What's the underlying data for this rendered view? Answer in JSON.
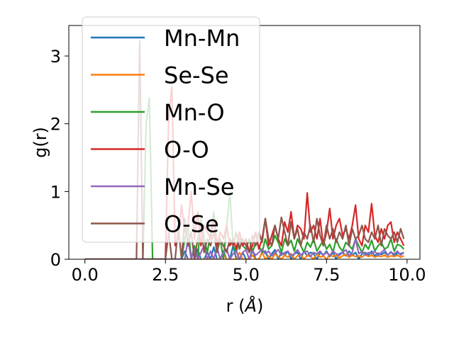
{
  "chart_data": {
    "type": "line",
    "title": "",
    "xlabel": "r (",
    "xlabel_unit": "Å",
    "xlabel_close": ")",
    "ylabel": "g(r)",
    "xlim": [
      -0.5,
      10.4
    ],
    "ylim": [
      0,
      3.45
    ],
    "xticks": [
      0.0,
      2.5,
      5.0,
      7.5,
      10.0
    ],
    "xtick_labels": [
      "0.0",
      "2.5",
      "5.0",
      "7.5",
      "10.0"
    ],
    "yticks": [
      0,
      1,
      2,
      3
    ],
    "ytick_labels": [
      "0",
      "1",
      "2",
      "3"
    ],
    "grid": false,
    "legend_position": "upper-left",
    "x": [
      0.0,
      0.1,
      0.2,
      0.3,
      0.4,
      0.5,
      0.6,
      0.7,
      0.8,
      0.9,
      1.0,
      1.1,
      1.2,
      1.3,
      1.4,
      1.5,
      1.6,
      1.7,
      1.8,
      1.9,
      2.0,
      2.1,
      2.2,
      2.3,
      2.4,
      2.5,
      2.6,
      2.7,
      2.8,
      2.9,
      3.0,
      3.1,
      3.2,
      3.3,
      3.4,
      3.5,
      3.6,
      3.7,
      3.8,
      3.9,
      4.0,
      4.1,
      4.2,
      4.3,
      4.4,
      4.5,
      4.6,
      4.7,
      4.8,
      4.9,
      5.0,
      5.1,
      5.2,
      5.3,
      5.4,
      5.5,
      5.6,
      5.7,
      5.8,
      5.9,
      6.0,
      6.1,
      6.2,
      6.3,
      6.4,
      6.5,
      6.6,
      6.7,
      6.8,
      6.9,
      7.0,
      7.1,
      7.2,
      7.3,
      7.4,
      7.5,
      7.6,
      7.7,
      7.8,
      7.9,
      8.0,
      8.1,
      8.2,
      8.3,
      8.4,
      8.5,
      8.6,
      8.7,
      8.8,
      8.9,
      9.0,
      9.1,
      9.2,
      9.3,
      9.4,
      9.5,
      9.6,
      9.7,
      9.8,
      9.9
    ],
    "series": [
      {
        "name": "Mn-Mn",
        "color": "#1f77b4",
        "values": [
          0,
          0,
          0,
          0,
          0,
          0,
          0,
          0,
          0,
          0,
          0,
          0,
          0,
          0,
          0,
          0,
          0,
          0,
          0,
          0,
          0,
          0,
          0,
          0,
          0,
          0,
          0,
          0,
          0,
          0,
          0,
          0.12,
          0,
          0,
          0,
          0.15,
          0,
          0,
          0.1,
          0,
          0.18,
          0,
          0,
          0.12,
          0,
          0,
          0.2,
          0,
          0,
          0.1,
          0,
          0,
          0.15,
          0,
          0,
          0.1,
          0.12,
          0,
          0.08,
          0.14,
          0,
          0.1,
          0.06,
          0.12,
          0,
          0.08,
          0.1,
          0,
          0.12,
          0.05,
          0.1,
          0.08,
          0,
          0.1,
          0.06,
          0.12,
          0.04,
          0.1,
          0,
          0.08,
          0.1,
          0.05,
          0.12,
          0.06,
          0.1,
          0,
          0.08,
          0.1,
          0.06,
          0.12,
          0.05,
          0.09,
          0.07,
          0.1,
          0.06,
          0.11,
          0.05,
          0.09,
          0.08,
          0.1
        ]
      },
      {
        "name": "Se-Se",
        "color": "#ff7f0e",
        "values": [
          0,
          0,
          0,
          0,
          0,
          0,
          0,
          0,
          0,
          0,
          0,
          0,
          0,
          0,
          0,
          0,
          0,
          0,
          0,
          0,
          0,
          0,
          0,
          0,
          0,
          0,
          0,
          0,
          0,
          0,
          0,
          0,
          0,
          0,
          0,
          0,
          0,
          0,
          0,
          0,
          0,
          0,
          0,
          0.08,
          0,
          0,
          0,
          0,
          0.1,
          0,
          0,
          0,
          0.06,
          0,
          0,
          0.1,
          0,
          0.05,
          0,
          0.08,
          0.04,
          0,
          0.06,
          0.03,
          0.08,
          0,
          0.05,
          0.07,
          0,
          0.06,
          0.04,
          0,
          0.08,
          0.03,
          0.05,
          0,
          0.07,
          0.04,
          0.06,
          0.02,
          0.05,
          0.07,
          0.03,
          0.06,
          0.04,
          0.05,
          0.03,
          0.07,
          0.04,
          0.06,
          0.03,
          0.05,
          0.04,
          0.06,
          0.03,
          0.05,
          0.04,
          0.06,
          0.03,
          0.05
        ]
      },
      {
        "name": "Mn-O",
        "color": "#2ca02c",
        "values": [
          0,
          0,
          0,
          0,
          0,
          0,
          0,
          0,
          0,
          0,
          0,
          0,
          0,
          0,
          0,
          0,
          0,
          0,
          0,
          2.0,
          2.38,
          0,
          0,
          0,
          0,
          0,
          0,
          0,
          0,
          0,
          0,
          0.3,
          0.5,
          0,
          0.2,
          0,
          0.6,
          0.3,
          0.1,
          0.4,
          0.7,
          0.2,
          0.3,
          0,
          0.5,
          0.98,
          0.2,
          0.1,
          0.3,
          0.2,
          0.15,
          0.3,
          0.1,
          0.25,
          0.2,
          0.1,
          0.3,
          0.15,
          0.2,
          0.35,
          0.25,
          0.1,
          0.3,
          0.2,
          0.28,
          0.12,
          0.3,
          0.2,
          0.1,
          0.25,
          0.18,
          0.3,
          0.12,
          0.2,
          0.28,
          0.15,
          0.22,
          0.1,
          0.3,
          0.18,
          0.12,
          0.25,
          0.2,
          0.15,
          0.3,
          0.2,
          0.1,
          0.22,
          0.15,
          0.28,
          0.12,
          0.2,
          0.25,
          0.15,
          0.18,
          0.3,
          0.12,
          0.22,
          0.2,
          0.15
        ]
      },
      {
        "name": "O-O",
        "color": "#d62728",
        "values": [
          0,
          0,
          0,
          0,
          0,
          0,
          0,
          0,
          0,
          0,
          0,
          0,
          0,
          0,
          0,
          0,
          0,
          0,
          0,
          0,
          0,
          0,
          0,
          0,
          0,
          0,
          2.1,
          2.55,
          0.2,
          0.3,
          0.8,
          0.4,
          0.5,
          1.0,
          0.3,
          0.7,
          0.2,
          0.5,
          0.4,
          0.3,
          0.6,
          0.2,
          0.4,
          0.3,
          0.5,
          0.2,
          0.3,
          0.15,
          0.4,
          0.2,
          0.3,
          0.1,
          0.2,
          0.4,
          0.15,
          0.3,
          0.6,
          0.2,
          0.35,
          0.5,
          0.3,
          0.2,
          0.55,
          0.4,
          0.7,
          0.3,
          0.5,
          0.45,
          0.3,
          0.98,
          0.4,
          0.5,
          0.3,
          0.6,
          0.2,
          0.4,
          0.75,
          0.3,
          0.5,
          0.6,
          0.35,
          0.45,
          0.3,
          0.5,
          0.8,
          0.3,
          0.2,
          0.5,
          0.4,
          0.82,
          0.35,
          0.25,
          0.45,
          0.3,
          0.5,
          0.55,
          0.25,
          0.4,
          0.3,
          0.2
        ]
      },
      {
        "name": "Mn-Se",
        "color": "#9467bd",
        "values": [
          0,
          0,
          0,
          0,
          0,
          0,
          0,
          0,
          0,
          0,
          0,
          0,
          0,
          0,
          0,
          0,
          0,
          0,
          0,
          0,
          0,
          0,
          0,
          0,
          0,
          0,
          0,
          0,
          0,
          0,
          0,
          0,
          0.3,
          0,
          0.15,
          0,
          0.1,
          0.2,
          0,
          0.12,
          0,
          0.18,
          0,
          0.1,
          0.15,
          0,
          0.08,
          0.12,
          0,
          0.1,
          0.14,
          0,
          0.12,
          0.06,
          0.1,
          0.15,
          0.08,
          0.12,
          0.05,
          0.1,
          0.14,
          0.06,
          0.1,
          0.12,
          0.05,
          0.08,
          0.14,
          0.06,
          0.1,
          0.12,
          0.04,
          0.1,
          0.08,
          0.12,
          0.06,
          0.1,
          0.05,
          0.12,
          0.08,
          0.06,
          0.1,
          0.14,
          0.05,
          0.1,
          0.3,
          0.08,
          0.12,
          0.06,
          0.1,
          0.08,
          0.12,
          0.05,
          0.1,
          0.14,
          0.06,
          0.1,
          0.08,
          0.12,
          0.06,
          0.1
        ]
      },
      {
        "name": "O-Se",
        "color": "#8c564b",
        "values": [
          0,
          0,
          0,
          0,
          0,
          0,
          0,
          0,
          0,
          0,
          0,
          0,
          0,
          0,
          0,
          0,
          0,
          3.22,
          0,
          0,
          0,
          0,
          0,
          0,
          0,
          0,
          0.4,
          0,
          0,
          0.5,
          0,
          0.6,
          0.2,
          0.4,
          0,
          0.3,
          0.5,
          0.1,
          0.3,
          0.2,
          0.4,
          0.1,
          0.3,
          0.2,
          0.1,
          0.3,
          0.2,
          0.4,
          0.15,
          0.3,
          0.2,
          0.1,
          0.35,
          0.2,
          0.4,
          0.25,
          0.6,
          0.3,
          0.2,
          0.5,
          0.3,
          0.62,
          0.4,
          0.2,
          0.55,
          0.3,
          0.45,
          0.2,
          0.4,
          0.3,
          0.5,
          0.25,
          0.6,
          0.35,
          0.2,
          0.5,
          0.3,
          0.45,
          0.25,
          0.4,
          0.3,
          0.5,
          0.2,
          0.45,
          0.3,
          0.35,
          0.5,
          0.3,
          0.25,
          0.4,
          0.3,
          0.5,
          0.2,
          0.45,
          0.35,
          0.3,
          0.4,
          0.25,
          0.45,
          0.3
        ]
      }
    ]
  }
}
